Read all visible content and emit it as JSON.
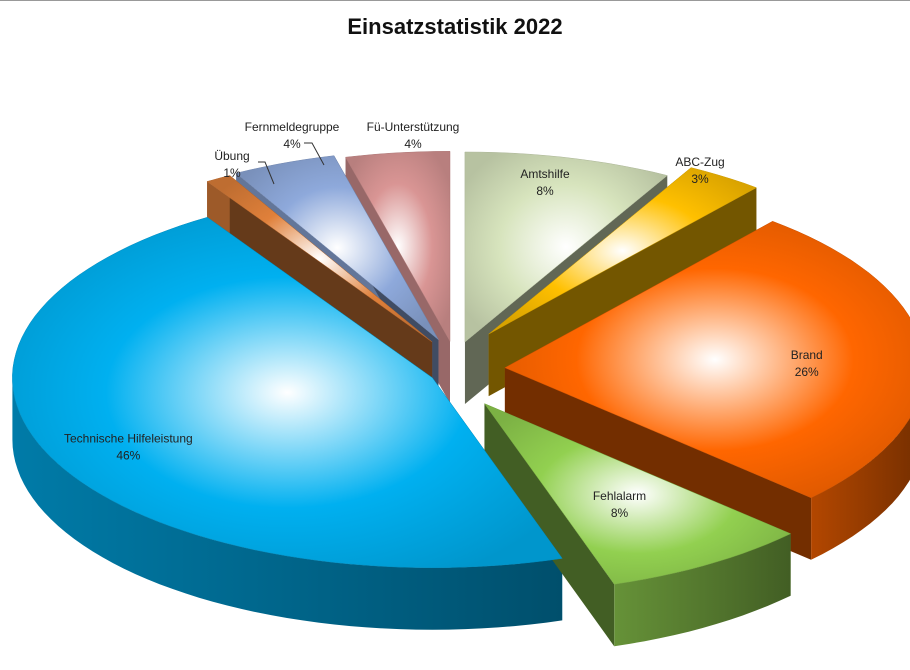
{
  "chart_data": {
    "type": "pie",
    "style": "3d-exploded",
    "title": "Einsatzstatistik 2022",
    "slices": [
      {
        "label": "Amtshilfe",
        "value": 8,
        "pct": "8%",
        "color": "#d7e4bd"
      },
      {
        "label": "ABC-Zug",
        "value": 3,
        "pct": "3%",
        "color": "#ffc000"
      },
      {
        "label": "Brand",
        "value": 26,
        "pct": "26%",
        "color": "#ff6600"
      },
      {
        "label": "Fehlalarm",
        "value": 8,
        "pct": "8%",
        "color": "#92d050"
      },
      {
        "label": "Technische Hilfeleistung",
        "value": 46,
        "pct": "46%",
        "color": "#00b0f0"
      },
      {
        "label": "Übung",
        "value": 1,
        "pct": "1%",
        "color": "#e0803a"
      },
      {
        "label": "Fernmeldegruppe",
        "value": 4,
        "pct": "4%",
        "color": "#8ea9db"
      },
      {
        "label": "Fü-Unterstützung",
        "value": 4,
        "pct": "4%",
        "color": "#d99594"
      }
    ]
  }
}
